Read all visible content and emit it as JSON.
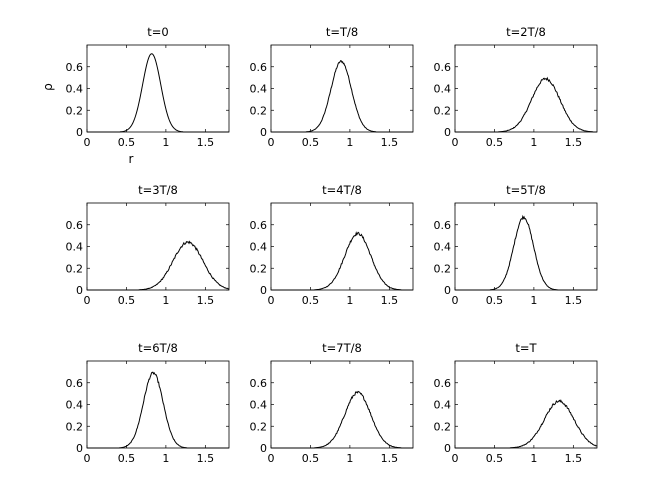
{
  "chart_data": {
    "type": "line",
    "layout": "3x3 grid of subplots",
    "xlim": [
      0,
      1.8
    ],
    "ylim": [
      0,
      0.8
    ],
    "xticks": [
      0,
      0.5,
      1,
      1.5
    ],
    "xtick_labels": [
      "0",
      "0.5",
      "1",
      "1.5"
    ],
    "yticks": [
      0,
      0.2,
      0.4,
      0.6
    ],
    "ytick_labels": [
      "0",
      "0.2",
      "0.4",
      "0.6"
    ],
    "xlabel": "r",
    "ylabel": "ρ",
    "panels": [
      {
        "title": "t=0",
        "center": 0.82,
        "sigma": 0.115,
        "peak": 0.72,
        "noise": 0.0
      },
      {
        "title": "t=T/8",
        "center": 0.89,
        "sigma": 0.13,
        "peak": 0.65,
        "noise": 0.01
      },
      {
        "title": "t=2T/8",
        "center": 1.15,
        "sigma": 0.18,
        "peak": 0.49,
        "noise": 0.012
      },
      {
        "title": "t=3T/8",
        "center": 1.28,
        "sigma": 0.19,
        "peak": 0.44,
        "noise": 0.012
      },
      {
        "title": "t=4T/8",
        "center": 1.1,
        "sigma": 0.165,
        "peak": 0.52,
        "noise": 0.012
      },
      {
        "title": "t=5T/8",
        "center": 0.87,
        "sigma": 0.125,
        "peak": 0.67,
        "noise": 0.012
      },
      {
        "title": "t=6T/8",
        "center": 0.84,
        "sigma": 0.125,
        "peak": 0.69,
        "noise": 0.012
      },
      {
        "title": "t=7T/8",
        "center": 1.1,
        "sigma": 0.165,
        "peak": 0.51,
        "noise": 0.012
      },
      {
        "title": "t=T",
        "center": 1.32,
        "sigma": 0.19,
        "peak": 0.43,
        "noise": 0.012
      }
    ]
  }
}
